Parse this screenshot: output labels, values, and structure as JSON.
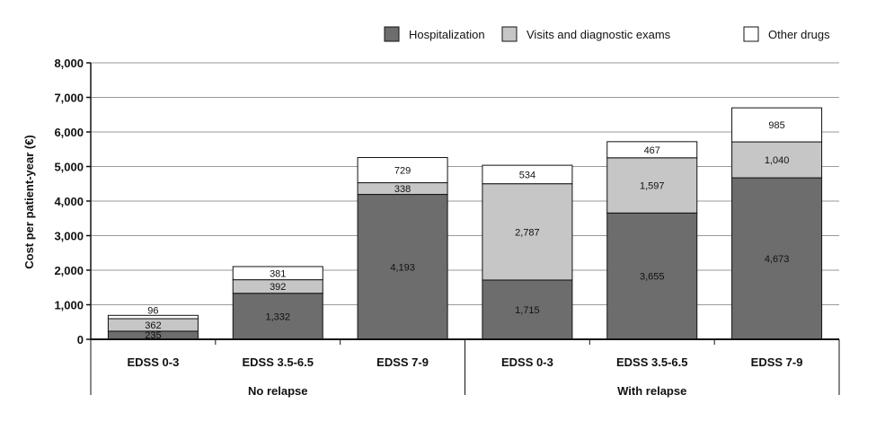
{
  "chart_data": {
    "type": "bar",
    "stacked": true,
    "title": "",
    "xlabel": "",
    "ylabel": "Cost per patient-year (€)",
    "ylim": [
      0,
      8000
    ],
    "y_ticks": [
      0,
      1000,
      2000,
      3000,
      4000,
      5000,
      6000,
      7000,
      8000
    ],
    "y_tick_labels": [
      "0",
      "1,000",
      "2,000",
      "3,000",
      "4,000",
      "5,000",
      "6,000",
      "7,000",
      "8,000"
    ],
    "grid": true,
    "legend_position": "top-right",
    "categories": [
      "EDSS 0-3",
      "EDSS 3.5-6.5",
      "EDSS 7-9",
      "EDSS 0-3",
      "EDSS 3.5-6.5",
      "EDSS 7-9"
    ],
    "groups": [
      {
        "label": "No relapse",
        "categories": [
          0,
          1,
          2
        ]
      },
      {
        "label": "With relapse",
        "categories": [
          3,
          4,
          5
        ]
      }
    ],
    "series": [
      {
        "name": "Hospitalization",
        "color": "#6d6d6d",
        "values": [
          235,
          1332,
          4193,
          1715,
          3655,
          4673
        ],
        "labels": [
          "235",
          "1,332",
          "4,193",
          "1,715",
          "3,655",
          "4,673"
        ]
      },
      {
        "name": "Visits and diagnostic exams",
        "color": "#c6c6c6",
        "values": [
          362,
          392,
          338,
          2787,
          1597,
          1040
        ],
        "labels": [
          "362",
          "392",
          "338",
          "2,787",
          "1,597",
          "1,040"
        ]
      },
      {
        "name": "Other drugs",
        "color": "#ffffff",
        "values": [
          96,
          381,
          729,
          534,
          467,
          985
        ],
        "labels": [
          "96",
          "381",
          "729",
          "534",
          "467",
          "985"
        ]
      }
    ]
  }
}
